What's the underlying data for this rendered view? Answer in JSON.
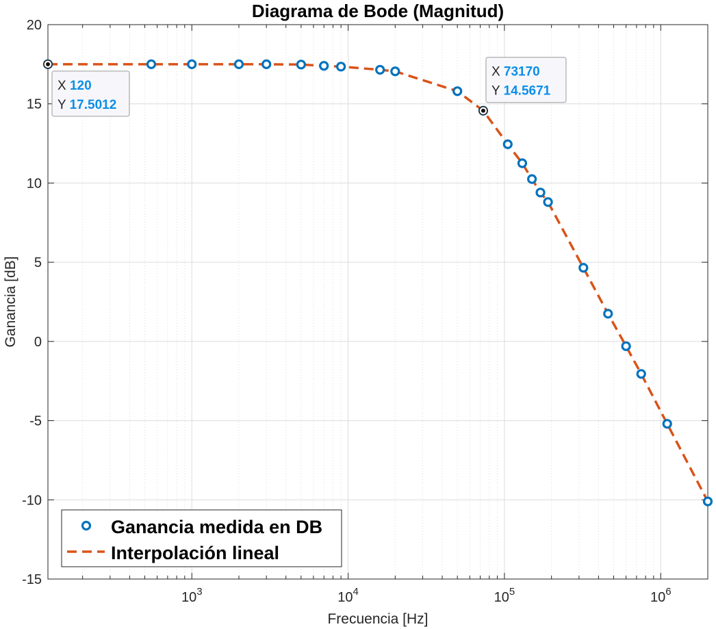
{
  "chart_data": {
    "type": "line",
    "title": "Diagrama de Bode (Magnitud)",
    "xlabel": "Frecuencia [Hz]",
    "ylabel": "Ganancia [dB]",
    "xscale": "log",
    "xlim": [
      120,
      2000000
    ],
    "ylim": [
      -15,
      20
    ],
    "yticks": [
      20,
      15,
      10,
      5,
      0,
      -5,
      -10,
      -15
    ],
    "ytick_labels": [
      "20",
      "15",
      "10",
      "5",
      "0",
      "-5",
      "-10",
      "-15"
    ],
    "xticks": [
      1000,
      10000,
      100000,
      1000000
    ],
    "xtick_labels": [
      {
        "base": "10",
        "exp": "3"
      },
      {
        "base": "10",
        "exp": "4"
      },
      {
        "base": "10",
        "exp": "5"
      },
      {
        "base": "10",
        "exp": "6"
      }
    ],
    "grid": true,
    "legend_position": "bottom-left",
    "series": [
      {
        "name": "Ganancia medida en DB",
        "style": "markers",
        "color": "#0072BD",
        "x": [
          120,
          550,
          1000,
          2000,
          3000,
          5000,
          7000,
          9000,
          16000,
          20000,
          50000,
          73170,
          105000,
          130000,
          150000,
          170000,
          190000,
          320000,
          460000,
          600000,
          750000,
          1100000,
          2000000
        ],
        "y": [
          17.5012,
          17.5,
          17.5,
          17.5,
          17.5,
          17.48,
          17.4,
          17.35,
          17.15,
          17.05,
          15.8,
          14.5671,
          12.45,
          11.25,
          10.25,
          9.4,
          8.8,
          4.65,
          1.75,
          -0.3,
          -2.05,
          -5.2,
          -10.1
        ]
      },
      {
        "name": "Interpolación lineal",
        "style": "dashed",
        "color": "#D95319",
        "x": [
          120,
          550,
          1000,
          2000,
          3000,
          5000,
          7000,
          9000,
          16000,
          20000,
          50000,
          73170,
          105000,
          130000,
          150000,
          170000,
          190000,
          320000,
          460000,
          600000,
          750000,
          1100000,
          2000000
        ],
        "y": [
          17.5012,
          17.5,
          17.5,
          17.5,
          17.5,
          17.48,
          17.4,
          17.35,
          17.15,
          17.05,
          15.8,
          14.5671,
          12.45,
          11.25,
          10.25,
          9.4,
          8.8,
          4.65,
          1.75,
          -0.3,
          -2.05,
          -5.2,
          -10.1
        ]
      }
    ],
    "datatips": [
      {
        "x_label": "X",
        "x_value": "120",
        "y_label": "Y",
        "y_value": "17.5012",
        "x": 120,
        "y": 17.5012
      },
      {
        "x_label": "X",
        "x_value": "73170",
        "y_label": "Y",
        "y_value": "14.5671",
        "x": 73170,
        "y": 14.5671
      }
    ]
  },
  "colors": {
    "axis": "#262626",
    "grid": "#dcdcdc",
    "datatip_value": "#0B8EE8",
    "datatip_border": "#9a9a9a",
    "datatip_bg": "#f7f7fb"
  }
}
